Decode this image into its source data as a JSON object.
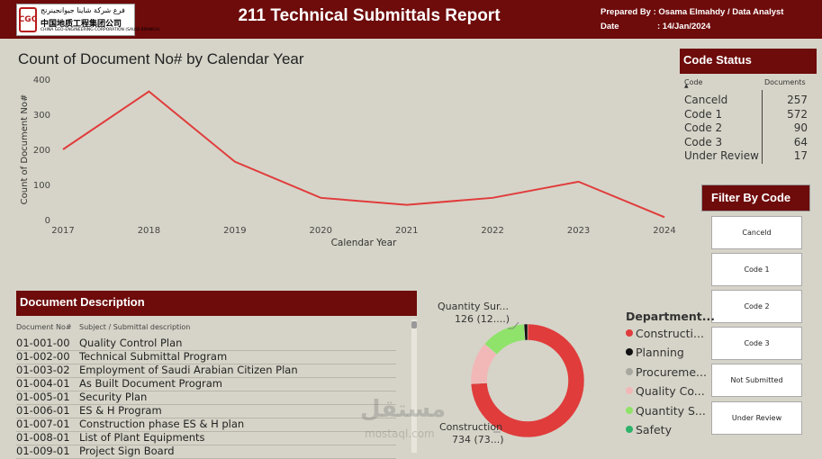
{
  "header": {
    "logo_arabic": "فرع شركة شاينا جيوانجينرنج",
    "logo_chinese": "中国地质工程集团公司",
    "logo_english": "CHINA GEO-ENGINEERING CORPORATION (SAUDI BRANCH)",
    "logo_mark": "CGC",
    "title": "211 Technical Submittals Report",
    "prepared_label": "Prepared By : Osama Elmahdy /  Data Analyst",
    "date_label": "Date",
    "date_value": ":  14/Jan/2024"
  },
  "line_chart": {
    "heading": "Count of Document No# by Calendar Year",
    "chart_data": {
      "type": "line",
      "title": "Count of Document No# by Calendar Year",
      "xlabel": "Calendar Year",
      "ylabel": "Count of Document No#",
      "x": [
        "2017",
        "2018",
        "2019",
        "2020",
        "2021",
        "2022",
        "2023",
        "2024"
      ],
      "values": [
        200,
        365,
        165,
        62,
        42,
        62,
        108,
        7
      ],
      "yticks": [
        "0",
        "100",
        "200",
        "300",
        "400"
      ],
      "ylim": [
        0,
        400
      ],
      "color": "#e03c3c"
    }
  },
  "code_status": {
    "heading": "Code Status",
    "col_code": "Code",
    "col_docs": "Documents",
    "rows": [
      {
        "code": "Canceld",
        "docs": "257"
      },
      {
        "code": "Code 1",
        "docs": "572"
      },
      {
        "code": "Code 2",
        "docs": "90"
      },
      {
        "code": "Code 3",
        "docs": "64"
      },
      {
        "code": "Under Review",
        "docs": "17"
      }
    ]
  },
  "filter": {
    "heading": "Filter By Code",
    "buttons": [
      "Canceld",
      "Code 1",
      "Code 2",
      "Code 3",
      "Not Submitted",
      "Under Review"
    ]
  },
  "documents": {
    "heading": "Document Description",
    "col_no": "Document No#",
    "col_desc": "Subject / Submittal description",
    "rows": [
      {
        "no": "01-001-00",
        "desc": "Quality Control Plan"
      },
      {
        "no": "01-002-00",
        "desc": "Technical Submittal Program"
      },
      {
        "no": "01-003-02",
        "desc": "Employment of Saudi Arabian Citizen Plan"
      },
      {
        "no": "01-004-01",
        "desc": "As Built Document Program"
      },
      {
        "no": "01-005-01",
        "desc": "Security Plan"
      },
      {
        "no": "01-006-01",
        "desc": "ES & H Program"
      },
      {
        "no": "01-007-01",
        "desc": "Construction phase ES & H plan"
      },
      {
        "no": "01-008-01",
        "desc": "List of Plant Equipments"
      },
      {
        "no": "01-009-01",
        "desc": "Project Sign Board"
      }
    ]
  },
  "donut": {
    "label_quality_1": "Quantity Sur...",
    "label_quality_2": "126 (12....)",
    "label_construction_1": "Construction",
    "label_construction_2": "734 (73...)",
    "legend_title": "Department...",
    "legend": [
      {
        "name": "Constructi...",
        "color": "#e03c3c"
      },
      {
        "name": "Planning",
        "color": "#111111"
      },
      {
        "name": "Procureme...",
        "color": "#a8a8a0"
      },
      {
        "name": "Quality Co...",
        "color": "#f2b8b8"
      },
      {
        "name": "Quantity S...",
        "color": "#8fe36a"
      },
      {
        "name": "Safety",
        "color": "#2db36a"
      }
    ],
    "chart_data": {
      "type": "pie",
      "title": "",
      "categories": [
        "Construction",
        "Quality Control",
        "Quantity Surveying",
        "Planning"
      ],
      "values": [
        734,
        120,
        126,
        10
      ],
      "colors": [
        "#e03c3c",
        "#f2b8b8",
        "#8fe36a",
        "#111111"
      ]
    }
  },
  "watermark": {
    "arabic": "مستقل",
    "latin": "mostaql.com"
  }
}
